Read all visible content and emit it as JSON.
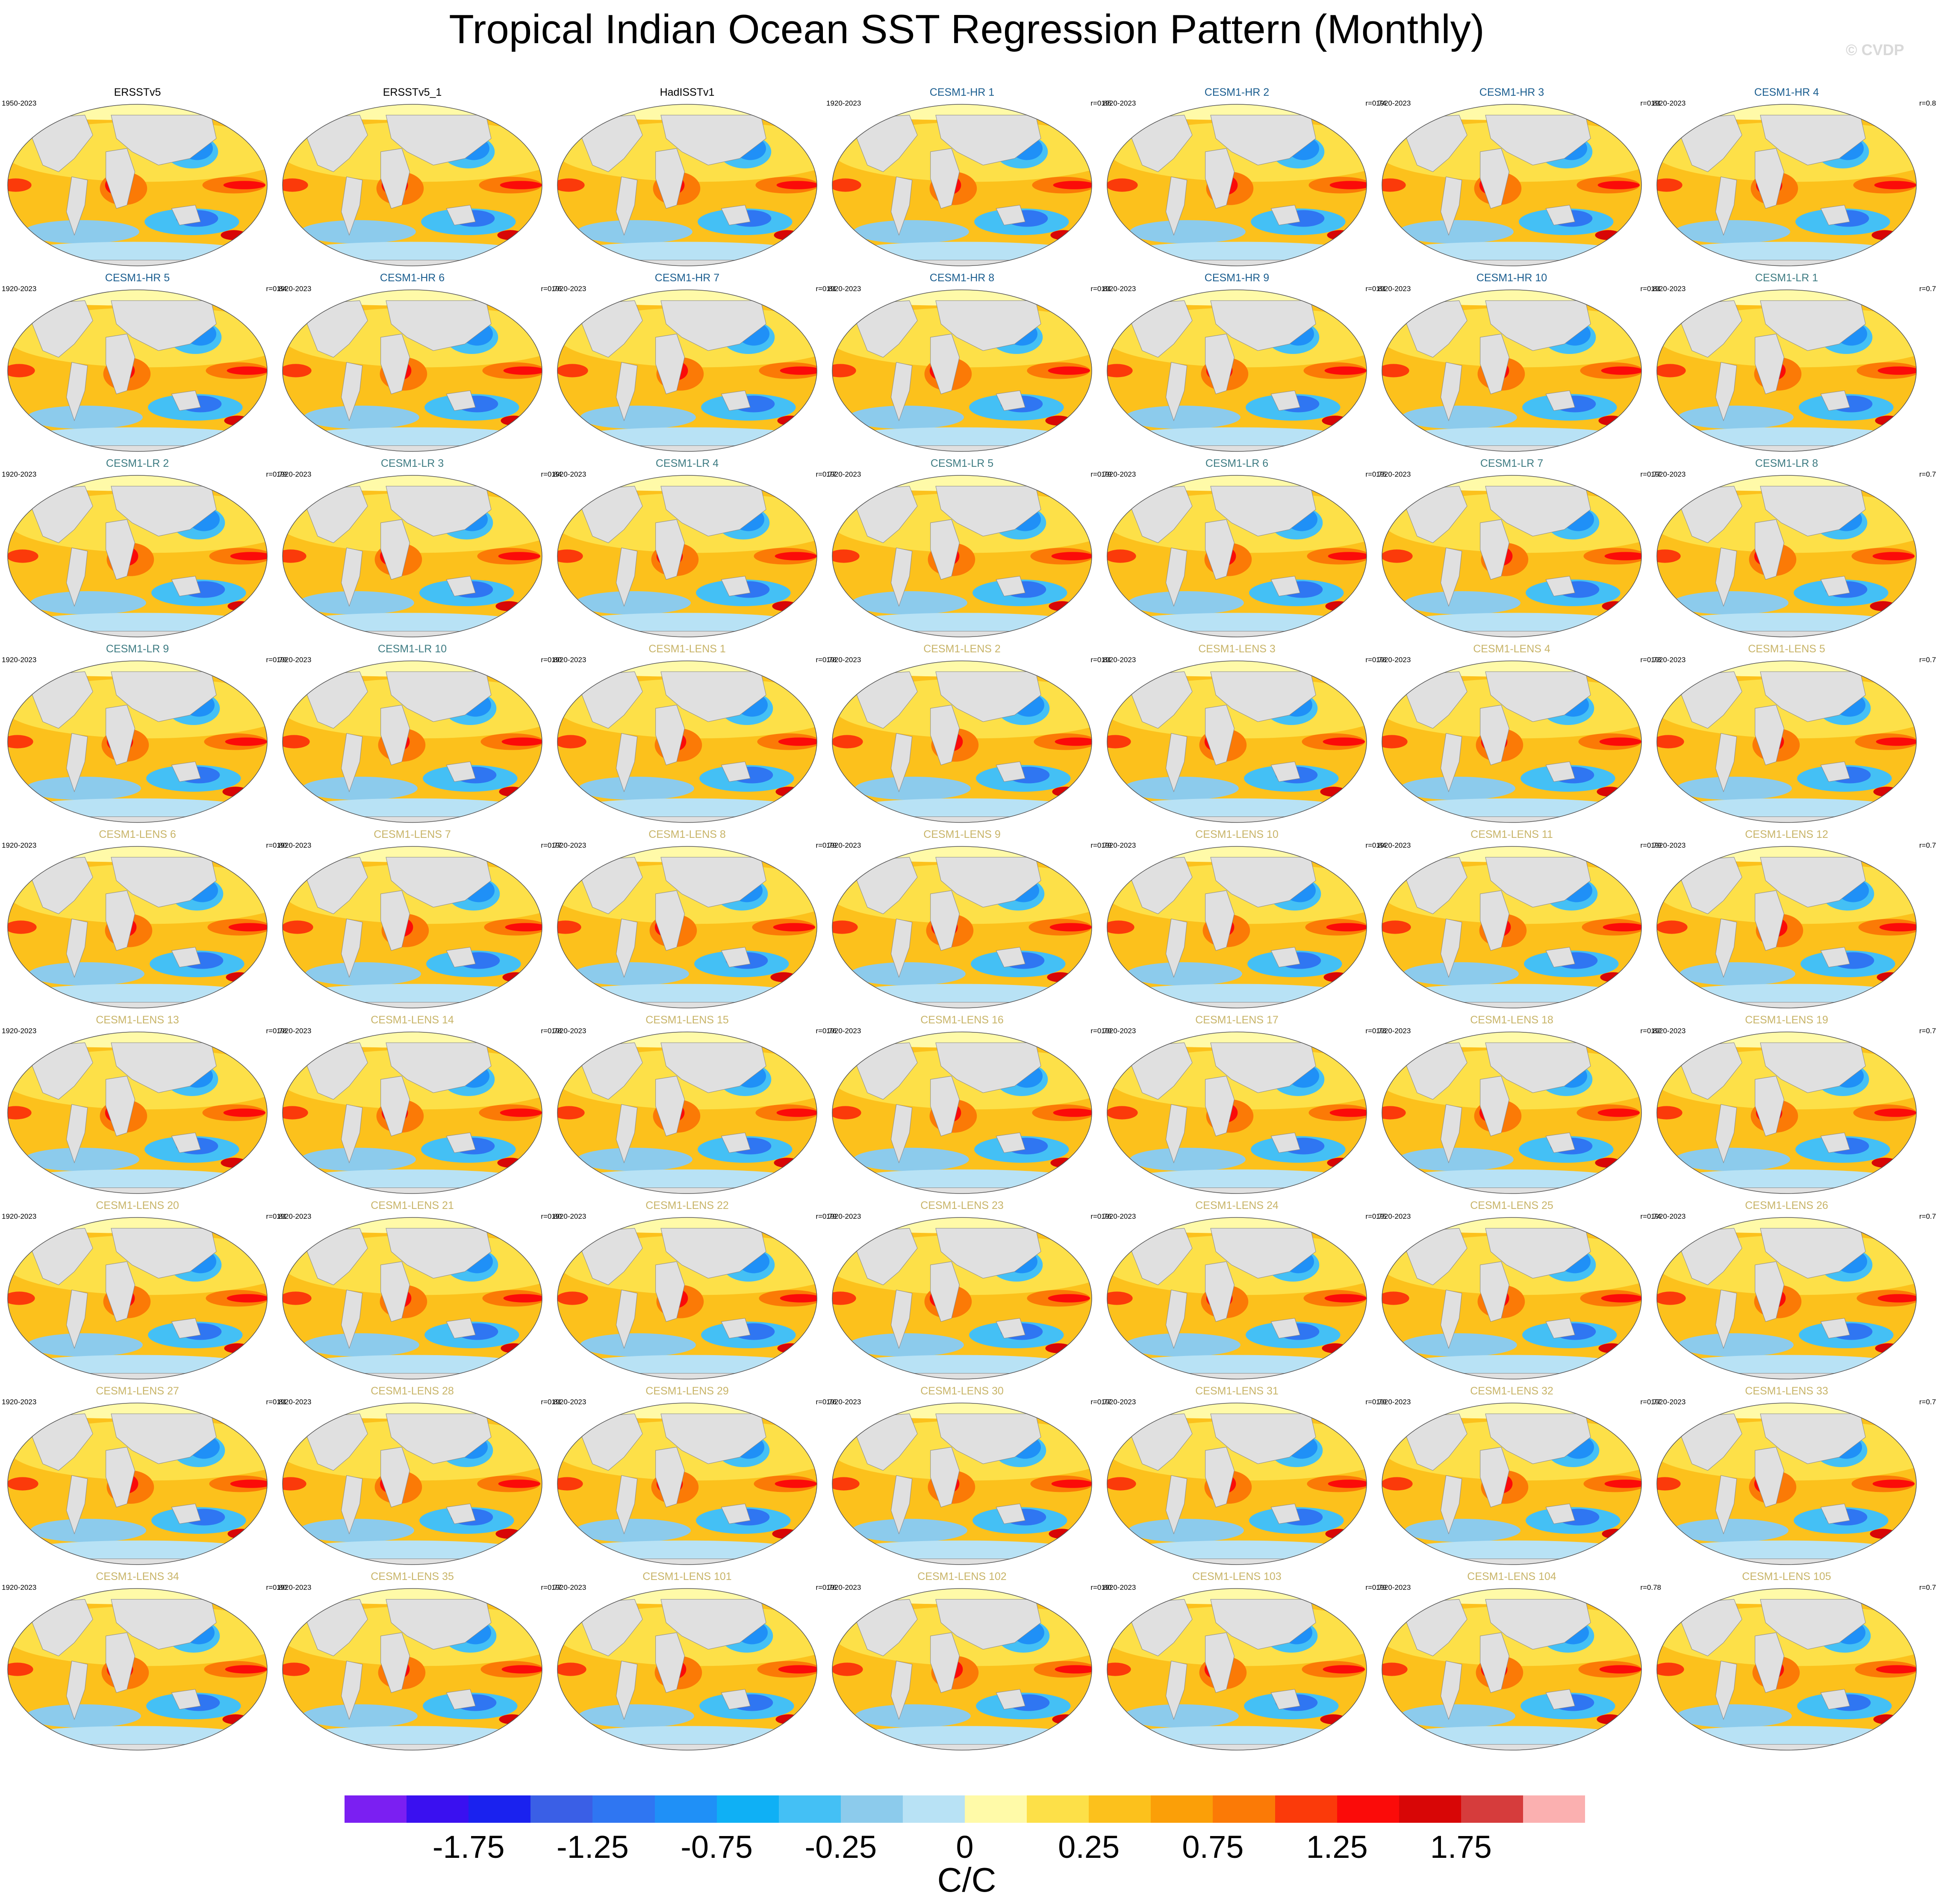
{
  "title": "Tropical Indian Ocean SST Regression Pattern (Monthly)",
  "watermark": "© CVDP",
  "chart_data": {
    "type": "heatmap",
    "title": "Tropical Indian Ocean SST Regression Pattern (Monthly)",
    "projection": "Robinson global maps",
    "colorbar": {
      "units": "C/C",
      "tick_labels": [
        "-1.75",
        "-1.25",
        "-0.75",
        "-0.25",
        "0",
        "0.25",
        "0.75",
        "1.25",
        "1.75"
      ],
      "colors": [
        "#7b1ff2",
        "#3a10f0",
        "#1a22ef",
        "#3a5fe6",
        "#2f76f2",
        "#1f90f7",
        "#0fb0f5",
        "#44c0f5",
        "#8ccbec",
        "#b8e2f5",
        "#fffaa8",
        "#fde048",
        "#fcc11c",
        "#fb9f08",
        "#fb7a06",
        "#fb3a0a",
        "#fb0b09",
        "#d80606",
        "#d63c3c",
        "#fbb0b0"
      ]
    },
    "panels": [
      {
        "name": "ERSSTv5",
        "years": "1950-2023",
        "r": "",
        "group": "obs"
      },
      {
        "name": "ERSSTv5_1",
        "years": "",
        "r": "",
        "group": "obs"
      },
      {
        "name": "HadISSTv1",
        "years": "",
        "r": "",
        "group": "obs"
      },
      {
        "name": "CESM1-HR 1",
        "years": "1920-2023",
        "r": "r=0.85",
        "group": "hr"
      },
      {
        "name": "CESM1-HR 2",
        "years": "1920-2023",
        "r": "r=0.74",
        "group": "hr"
      },
      {
        "name": "CESM1-HR 3",
        "years": "1920-2023",
        "r": "r=0.81",
        "group": "hr"
      },
      {
        "name": "CESM1-HR 4",
        "years": "1920-2023",
        "r": "r=0.8",
        "group": "hr"
      },
      {
        "name": "CESM1-HR 5",
        "years": "1920-2023",
        "r": "r=0.84",
        "group": "hr"
      },
      {
        "name": "CESM1-HR 6",
        "years": "1920-2023",
        "r": "r=0.76",
        "group": "hr"
      },
      {
        "name": "CESM1-HR 7",
        "years": "1920-2023",
        "r": "r=0.81",
        "group": "hr"
      },
      {
        "name": "CESM1-HR 8",
        "years": "1920-2023",
        "r": "r=0.81",
        "group": "hr"
      },
      {
        "name": "CESM1-HR 9",
        "years": "1920-2023",
        "r": "r=0.81",
        "group": "hr"
      },
      {
        "name": "CESM1-HR 10",
        "years": "1920-2023",
        "r": "r=0.81",
        "group": "hr"
      },
      {
        "name": "CESM1-LR 1",
        "years": "1920-2023",
        "r": "r=0.7",
        "group": "lr"
      },
      {
        "name": "CESM1-LR 2",
        "years": "1920-2023",
        "r": "r=0.79",
        "group": "lr"
      },
      {
        "name": "CESM1-LR 3",
        "years": "1920-2023",
        "r": "r=0.84",
        "group": "lr"
      },
      {
        "name": "CESM1-LR 4",
        "years": "1920-2023",
        "r": "r=0.77",
        "group": "lr"
      },
      {
        "name": "CESM1-LR 5",
        "years": "1920-2023",
        "r": "r=0.79",
        "group": "lr"
      },
      {
        "name": "CESM1-LR 6",
        "years": "1920-2023",
        "r": "r=0.75",
        "group": "lr"
      },
      {
        "name": "CESM1-LR 7",
        "years": "1920-2023",
        "r": "r=0.77",
        "group": "lr"
      },
      {
        "name": "CESM1-LR 8",
        "years": "1920-2023",
        "r": "r=0.7",
        "group": "lr"
      },
      {
        "name": "CESM1-LR 9",
        "years": "1920-2023",
        "r": "r=0.79",
        "group": "lr"
      },
      {
        "name": "CESM1-LR 10",
        "years": "1920-2023",
        "r": "r=0.80",
        "group": "lr"
      },
      {
        "name": "CESM1-LENS 1",
        "years": "1920-2023",
        "r": "r=0.78",
        "group": "lens"
      },
      {
        "name": "CESM1-LENS 2",
        "years": "1920-2023",
        "r": "r=0.81",
        "group": "lens"
      },
      {
        "name": "CESM1-LENS 3",
        "years": "1920-2023",
        "r": "r=0.78",
        "group": "lens"
      },
      {
        "name": "CESM1-LENS 4",
        "years": "1920-2023",
        "r": "r=0.73",
        "group": "lens"
      },
      {
        "name": "CESM1-LENS 5",
        "years": "1920-2023",
        "r": "r=0.7",
        "group": "lens"
      },
      {
        "name": "CESM1-LENS 6",
        "years": "1920-2023",
        "r": "r=0.80",
        "group": "lens"
      },
      {
        "name": "CESM1-LENS 7",
        "years": "1920-2023",
        "r": "r=0.77",
        "group": "lens"
      },
      {
        "name": "CESM1-LENS 8",
        "years": "1920-2023",
        "r": "r=0.79",
        "group": "lens"
      },
      {
        "name": "CESM1-LENS 9",
        "years": "1920-2023",
        "r": "r=0.79",
        "group": "lens"
      },
      {
        "name": "CESM1-LENS 10",
        "years": "1920-2023",
        "r": "r=0.84",
        "group": "lens"
      },
      {
        "name": "CESM1-LENS 11",
        "years": "1920-2023",
        "r": "r=0.79",
        "group": "lens"
      },
      {
        "name": "CESM1-LENS 12",
        "years": "1920-2023",
        "r": "r=0.7",
        "group": "lens"
      },
      {
        "name": "CESM1-LENS 13",
        "years": "1920-2023",
        "r": "r=0.78",
        "group": "lens"
      },
      {
        "name": "CESM1-LENS 14",
        "years": "1920-2023",
        "r": "r=0.78",
        "group": "lens"
      },
      {
        "name": "CESM1-LENS 15",
        "years": "1920-2023",
        "r": "r=0.76",
        "group": "lens"
      },
      {
        "name": "CESM1-LENS 16",
        "years": "1920-2023",
        "r": "r=0.79",
        "group": "lens"
      },
      {
        "name": "CESM1-LENS 17",
        "years": "1920-2023",
        "r": "r=0.73",
        "group": "lens"
      },
      {
        "name": "CESM1-LENS 18",
        "years": "1920-2023",
        "r": "r=0.82",
        "group": "lens"
      },
      {
        "name": "CESM1-LENS 19",
        "years": "1920-2023",
        "r": "r=0.7",
        "group": "lens"
      },
      {
        "name": "CESM1-LENS 20",
        "years": "1920-2023",
        "r": "r=0.81",
        "group": "lens"
      },
      {
        "name": "CESM1-LENS 21",
        "years": "1920-2023",
        "r": "r=0.80",
        "group": "lens"
      },
      {
        "name": "CESM1-LENS 22",
        "years": "1920-2023",
        "r": "r=0.79",
        "group": "lens"
      },
      {
        "name": "CESM1-LENS 23",
        "years": "1920-2023",
        "r": "r=0.76",
        "group": "lens"
      },
      {
        "name": "CESM1-LENS 24",
        "years": "1920-2023",
        "r": "r=0.75",
        "group": "lens"
      },
      {
        "name": "CESM1-LENS 25",
        "years": "1920-2023",
        "r": "r=0.74",
        "group": "lens"
      },
      {
        "name": "CESM1-LENS 26",
        "years": "1920-2023",
        "r": "r=0.7",
        "group": "lens"
      },
      {
        "name": "CESM1-LENS 27",
        "years": "1920-2023",
        "r": "r=0.81",
        "group": "lens"
      },
      {
        "name": "CESM1-LENS 28",
        "years": "1920-2023",
        "r": "r=0.81",
        "group": "lens"
      },
      {
        "name": "CESM1-LENS 29",
        "years": "1920-2023",
        "r": "r=0.76",
        "group": "lens"
      },
      {
        "name": "CESM1-LENS 30",
        "years": "1920-2023",
        "r": "r=0.77",
        "group": "lens"
      },
      {
        "name": "CESM1-LENS 31",
        "years": "1920-2023",
        "r": "r=0.79",
        "group": "lens"
      },
      {
        "name": "CESM1-LENS 32",
        "years": "1920-2023",
        "r": "r=0.77",
        "group": "lens"
      },
      {
        "name": "CESM1-LENS 33",
        "years": "1920-2023",
        "r": "r=0.7",
        "group": "lens"
      },
      {
        "name": "CESM1-LENS 34",
        "years": "1920-2023",
        "r": "r=0.80",
        "group": "lens"
      },
      {
        "name": "CESM1-LENS 35",
        "years": "1920-2023",
        "r": "r=0.77",
        "group": "lens"
      },
      {
        "name": "CESM1-LENS 101",
        "years": "1920-2023",
        "r": "r=0.76",
        "group": "lens"
      },
      {
        "name": "CESM1-LENS 102",
        "years": "1920-2023",
        "r": "r=0.80",
        "group": "lens"
      },
      {
        "name": "CESM1-LENS 103",
        "years": "1920-2023",
        "r": "r=0.79",
        "group": "lens"
      },
      {
        "name": "CESM1-LENS 104",
        "years": "1920-2023",
        "r": "r=0.78",
        "group": "lens"
      },
      {
        "name": "CESM1-LENS 105",
        "years": "",
        "r": "r=0.7",
        "group": "lens"
      }
    ],
    "group_colors": {
      "obs": "#000000",
      "hr": "#1a5d8f",
      "lr": "#3d7b82",
      "lens": "#c8b468"
    }
  }
}
